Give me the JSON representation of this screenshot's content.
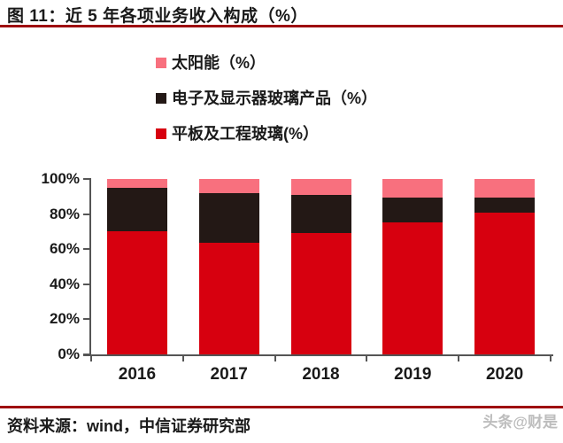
{
  "figure": {
    "title": "图 11：近 5 年各项业务收入构成（%）",
    "source_note": "资料来源：wind，中信证券研究部",
    "watermark": "头条@财是"
  },
  "colors": {
    "solar_pink": "#f8707e",
    "electronics_dark": "#231815",
    "flat_glass_red": "#d7000f",
    "rule_dark_red": "#9e0b0f",
    "axis_gray": "#555555"
  },
  "legend": [
    {
      "label": "太阳能（%）",
      "color": "#f8707e"
    },
    {
      "label": "电子及显示器玻璃产品（%）",
      "color": "#231815"
    },
    {
      "label": "平板及工程玻璃(%）",
      "color": "#d7000f"
    }
  ],
  "chart_data": {
    "type": "bar",
    "stacked": true,
    "stack_order": "bottom-to-top",
    "categories": [
      "2016",
      "2017",
      "2018",
      "2019",
      "2020"
    ],
    "series": [
      {
        "name": "平板及工程玻璃(%）",
        "color": "#d7000f",
        "values": [
          70,
          63.5,
          69,
          75.5,
          81
        ]
      },
      {
        "name": "电子及显示器玻璃产品（%）",
        "color": "#231815",
        "values": [
          25,
          28.5,
          22,
          14,
          8.5
        ]
      },
      {
        "name": "太阳能（%）",
        "color": "#f8707e",
        "values": [
          5,
          8,
          9,
          10.5,
          10.5
        ]
      }
    ],
    "title": "近 5 年各项业务收入构成（%）",
    "xlabel": "",
    "ylabel": "",
    "ylim": [
      0,
      100
    ],
    "yticks": [
      "0%",
      "20%",
      "40%",
      "60%",
      "80%",
      "100%"
    ],
    "ytick_step": 20,
    "grid": false,
    "legend_position": "top, vertical list"
  }
}
